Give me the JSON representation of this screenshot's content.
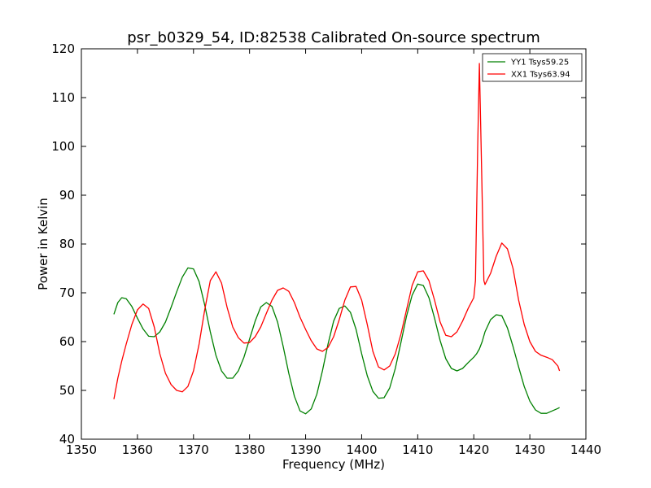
{
  "chart_data": {
    "type": "line",
    "title": "psr_b0329_54, ID:82538 Calibrated On-source spectrum",
    "xlabel": "Frequency (MHz)",
    "ylabel": "Power in Kelvin",
    "xlim": [
      1350,
      1440
    ],
    "ylim": [
      40,
      120
    ],
    "xticks": [
      "1350",
      "1360",
      "1370",
      "1380",
      "1390",
      "1400",
      "1410",
      "1420",
      "1430",
      "1440"
    ],
    "yticks": [
      "40",
      "50",
      "60",
      "70",
      "80",
      "90",
      "100",
      "110",
      "120"
    ],
    "grid": false,
    "legend_position": "top-right",
    "series": [
      {
        "name": "YY1 Tsys59.25",
        "color": "#008000",
        "x": [
          1355.8,
          1356.5,
          1357.2,
          1358,
          1359,
          1360,
          1361,
          1362,
          1363,
          1364,
          1365,
          1366,
          1367,
          1368,
          1369,
          1370,
          1371,
          1372,
          1373,
          1374,
          1375,
          1376,
          1377,
          1378,
          1379,
          1380,
          1381,
          1382,
          1383,
          1384,
          1385,
          1386,
          1387,
          1388,
          1389,
          1390,
          1391,
          1392,
          1393,
          1394,
          1395,
          1396,
          1397,
          1398,
          1399,
          1400,
          1401,
          1402,
          1403,
          1404,
          1405,
          1406,
          1407,
          1408,
          1409,
          1410,
          1411,
          1412,
          1413,
          1414,
          1415,
          1416,
          1417,
          1418,
          1419,
          1420,
          1420.5,
          1421,
          1421.5,
          1422,
          1423,
          1424,
          1425,
          1426,
          1427,
          1428,
          1429,
          1430,
          1431,
          1432,
          1433,
          1434,
          1435,
          1435.3
        ],
        "values": [
          65.6,
          68.0,
          69.0,
          68.8,
          67.2,
          64.8,
          62.6,
          61.1,
          61.0,
          62.0,
          64.0,
          67.0,
          70.2,
          73.2,
          75.1,
          74.9,
          72.3,
          67.5,
          62.0,
          57.2,
          54.0,
          52.5,
          52.5,
          54.0,
          56.8,
          60.5,
          64.2,
          67.1,
          68.0,
          67.2,
          64.0,
          59.0,
          53.5,
          48.8,
          45.8,
          45.2,
          46.2,
          49.2,
          54.0,
          59.5,
          64.2,
          66.8,
          67.3,
          66.0,
          62.5,
          57.5,
          53.0,
          49.8,
          48.4,
          48.5,
          50.5,
          54.5,
          59.8,
          65.2,
          69.5,
          71.8,
          71.5,
          69.0,
          64.8,
          60.2,
          56.5,
          54.5,
          54.0,
          54.5,
          55.7,
          56.8,
          57.5,
          58.5,
          60.0,
          62.0,
          64.5,
          65.5,
          65.3,
          62.8,
          59.0,
          54.8,
          50.8,
          47.8,
          46.0,
          45.3,
          45.3,
          45.8,
          46.3,
          46.5
        ]
      },
      {
        "name": "XX1 Tsys63.94",
        "color": "#ff0000",
        "x": [
          1355.8,
          1356.5,
          1357.2,
          1358,
          1359,
          1360,
          1361,
          1362,
          1363,
          1364,
          1365,
          1366,
          1367,
          1368,
          1369,
          1370,
          1371,
          1372,
          1373,
          1374,
          1375,
          1376,
          1377,
          1378,
          1379,
          1380,
          1381,
          1382,
          1383,
          1384,
          1385,
          1386,
          1387,
          1388,
          1389,
          1390,
          1391,
          1392,
          1393,
          1394,
          1395,
          1396,
          1397,
          1398,
          1399,
          1400,
          1401,
          1402,
          1403,
          1404,
          1405,
          1406,
          1407,
          1408,
          1409,
          1410,
          1411,
          1412,
          1413,
          1414,
          1415,
          1416,
          1417,
          1418,
          1419,
          1420,
          1420.3,
          1420.7,
          1421,
          1421.4,
          1421.8,
          1422,
          1423,
          1424,
          1425,
          1426,
          1427,
          1428,
          1429,
          1430,
          1431,
          1432,
          1433,
          1434,
          1435,
          1435.3
        ],
        "values": [
          48.2,
          52.5,
          56.0,
          59.5,
          63.5,
          66.5,
          67.7,
          66.8,
          63.0,
          57.5,
          53.5,
          51.2,
          50.0,
          49.7,
          50.8,
          54.0,
          59.5,
          66.5,
          72.5,
          74.3,
          72.0,
          67.0,
          63.0,
          60.8,
          59.7,
          59.8,
          61.0,
          63.0,
          65.8,
          68.5,
          70.5,
          71.0,
          70.3,
          68.0,
          65.0,
          62.5,
          60.2,
          58.5,
          58.0,
          58.8,
          61.0,
          64.5,
          68.5,
          71.2,
          71.3,
          68.5,
          63.5,
          58.0,
          54.8,
          54.2,
          55.0,
          57.5,
          61.5,
          66.5,
          71.5,
          74.3,
          74.5,
          72.5,
          68.5,
          64.0,
          61.3,
          61.0,
          62.0,
          64.2,
          66.8,
          69.0,
          72.5,
          100.0,
          117.0,
          95.0,
          72.5,
          71.7,
          74.0,
          77.5,
          80.2,
          79.0,
          75.0,
          68.5,
          63.5,
          60.0,
          58.0,
          57.2,
          56.8,
          56.3,
          55.0,
          54.0
        ]
      }
    ]
  }
}
